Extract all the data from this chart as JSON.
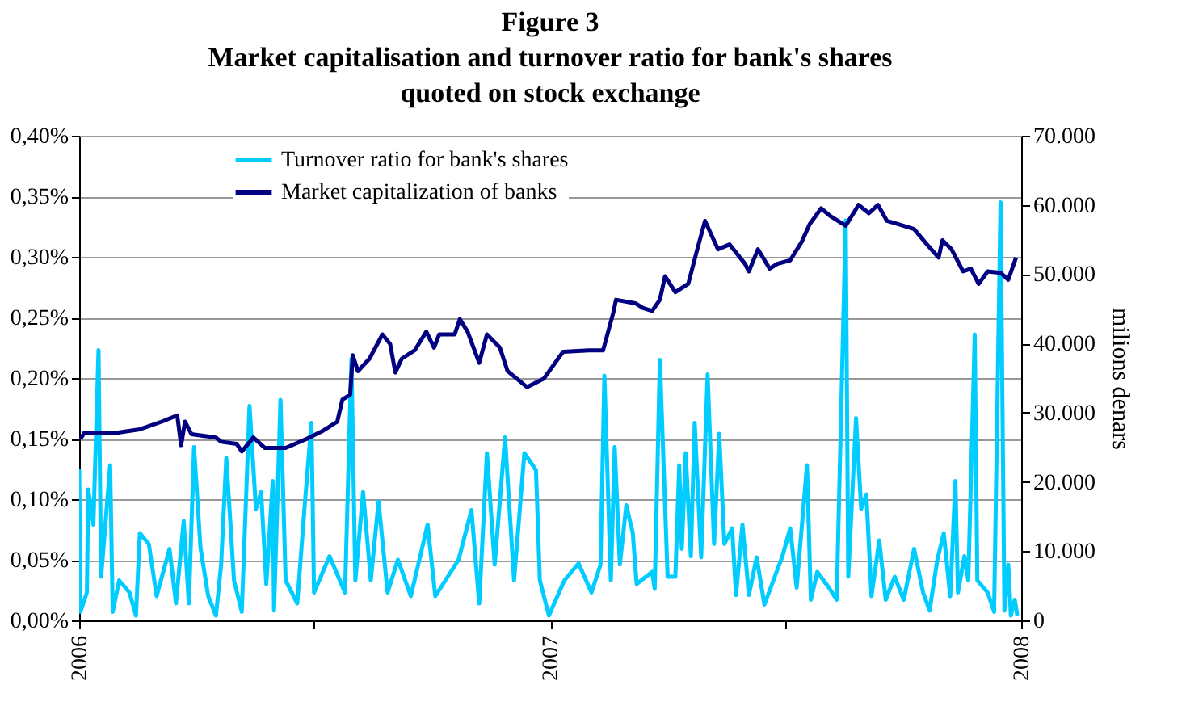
{
  "chart_data": {
    "type": "line",
    "title": "Figure 3",
    "subtitle": "Market capitalisation and turnover ratio for bank's shares\nquoted on stock exchange",
    "y2label": "milions denars",
    "xlim": [
      "2006-01-01",
      "2008-01-01"
    ],
    "xticks": [
      {
        "value": "2006-01-01",
        "label": "2006"
      },
      {
        "value": "2006-07-02",
        "label": null
      },
      {
        "value": "2007-01-01",
        "label": "2007"
      },
      {
        "value": "2007-07-02",
        "label": null
      },
      {
        "value": "2008-01-01",
        "label": "2008"
      }
    ],
    "ylim": [
      0,
      0.4
    ],
    "yticks": [
      {
        "value": 0,
        "label": "0,00%"
      },
      {
        "value": 0.05,
        "label": "0,05%"
      },
      {
        "value": 0.1,
        "label": "0,10%"
      },
      {
        "value": 0.15,
        "label": "0,15%"
      },
      {
        "value": 0.2,
        "label": "0,20%"
      },
      {
        "value": 0.25,
        "label": "0,25%"
      },
      {
        "value": 0.3,
        "label": "0,30%"
      },
      {
        "value": 0.35,
        "label": "0,35%"
      },
      {
        "value": 0.4,
        "label": "0,40%"
      }
    ],
    "y2lim": [
      0,
      70000
    ],
    "y2ticks": [
      {
        "value": 0,
        "label": "0"
      },
      {
        "value": 10000,
        "label": "10.000"
      },
      {
        "value": 20000,
        "label": "20.000"
      },
      {
        "value": 30000,
        "label": "30.000"
      },
      {
        "value": 40000,
        "label": "40.000"
      },
      {
        "value": 50000,
        "label": "50.000"
      },
      {
        "value": 60000,
        "label": "60.000"
      },
      {
        "value": 70000,
        "label": "70.000"
      }
    ],
    "grid": "y",
    "legend": "top",
    "marker": "none",
    "line_style": "solid",
    "series": [
      {
        "name": "Turnover ratio for bank's shares",
        "color": "#00ccff",
        "axis": "y",
        "x": [
          "2006-01-01",
          "2006-01-02",
          "2006-01-07",
          "2006-01-08",
          "2006-01-12",
          "2006-01-16",
          "2006-01-18",
          "2006-01-25",
          "2006-01-27",
          "2006-02-01",
          "2006-02-09",
          "2006-02-14",
          "2006-02-17",
          "2006-02-24",
          "2006-03-02",
          "2006-03-12",
          "2006-03-17",
          "2006-03-23",
          "2006-03-27",
          "2006-03-31",
          "2006-04-05",
          "2006-04-11",
          "2006-04-17",
          "2006-04-21",
          "2006-04-25",
          "2006-05-01",
          "2006-05-07",
          "2006-05-13",
          "2006-05-18",
          "2006-05-22",
          "2006-05-26",
          "2006-05-31",
          "2006-06-01",
          "2006-06-06",
          "2006-06-10",
          "2006-06-19",
          "2006-06-25",
          "2006-06-30",
          "2006-07-02",
          "2006-07-14",
          "2006-07-26",
          "2006-07-31",
          "2006-08-03",
          "2006-08-09",
          "2006-08-15",
          "2006-08-21",
          "2006-08-28",
          "2006-09-05",
          "2006-09-15",
          "2006-09-28",
          "2006-10-04",
          "2006-10-22",
          "2006-11-01",
          "2006-11-07",
          "2006-11-13",
          "2006-11-19",
          "2006-11-27",
          "2006-12-04",
          "2006-12-12",
          "2006-12-21",
          "2006-12-24",
          "2006-12-31",
          "2007-01-12",
          "2007-01-23",
          "2007-02-02",
          "2007-02-09",
          "2007-02-12",
          "2007-02-17",
          "2007-02-20",
          "2007-02-24",
          "2007-03-01",
          "2007-03-06",
          "2007-03-09",
          "2007-03-21",
          "2007-03-23",
          "2007-03-27",
          "2007-04-02",
          "2007-04-08",
          "2007-04-11",
          "2007-04-13",
          "2007-04-16",
          "2007-04-20",
          "2007-04-23",
          "2007-04-28",
          "2007-05-03",
          "2007-05-08",
          "2007-05-12",
          "2007-05-16",
          "2007-05-22",
          "2007-05-25",
          "2007-05-30",
          "2007-06-04",
          "2007-06-10",
          "2007-06-16",
          "2007-06-24",
          "2007-06-30",
          "2007-07-06",
          "2007-07-11",
          "2007-07-19",
          "2007-07-22",
          "2007-07-27",
          "2007-08-05",
          "2007-08-11",
          "2007-08-18",
          "2007-08-20",
          "2007-08-26",
          "2007-08-30",
          "2007-09-03",
          "2007-09-07",
          "2007-09-13",
          "2007-09-18",
          "2007-09-25",
          "2007-10-02",
          "2007-10-10",
          "2007-10-17",
          "2007-10-22",
          "2007-10-28",
          "2007-11-02",
          "2007-11-07",
          "2007-11-11",
          "2007-11-13",
          "2007-11-18",
          "2007-11-21",
          "2007-11-26",
          "2007-11-28",
          "2007-12-06",
          "2007-12-11",
          "2007-12-16",
          "2007-12-19",
          "2007-12-22",
          "2007-12-24",
          "2007-12-27",
          "2007-12-29"
        ],
        "values": [
          0.125,
          0.007,
          0.023,
          0.108,
          0.079,
          0.223,
          0.036,
          0.128,
          0.007,
          0.033,
          0.023,
          0.004,
          0.072,
          0.063,
          0.02,
          0.059,
          0.014,
          0.082,
          0.014,
          0.143,
          0.06,
          0.02,
          0.004,
          0.046,
          0.134,
          0.033,
          0.007,
          0.177,
          0.092,
          0.106,
          0.03,
          0.115,
          0.008,
          0.182,
          0.033,
          0.014,
          0.098,
          0.163,
          0.023,
          0.053,
          0.023,
          0.216,
          0.033,
          0.106,
          0.033,
          0.098,
          0.023,
          0.05,
          0.02,
          0.079,
          0.02,
          0.05,
          0.091,
          0.014,
          0.138,
          0.046,
          0.151,
          0.033,
          0.138,
          0.124,
          0.033,
          0.004,
          0.033,
          0.047,
          0.023,
          0.046,
          0.202,
          0.033,
          0.143,
          0.046,
          0.095,
          0.072,
          0.03,
          0.04,
          0.026,
          0.215,
          0.036,
          0.036,
          0.128,
          0.059,
          0.138,
          0.053,
          0.163,
          0.052,
          0.203,
          0.063,
          0.154,
          0.063,
          0.076,
          0.021,
          0.079,
          0.021,
          0.052,
          0.013,
          0.036,
          0.053,
          0.076,
          0.027,
          0.128,
          0.017,
          0.04,
          0.027,
          0.017,
          0.33,
          0.036,
          0.167,
          0.092,
          0.104,
          0.02,
          0.066,
          0.017,
          0.036,
          0.017,
          0.059,
          0.023,
          0.008,
          0.05,
          0.072,
          0.02,
          0.115,
          0.023,
          0.053,
          0.033,
          0.236,
          0.033,
          0.023,
          0.007,
          0.345,
          0.008,
          0.046,
          0.004,
          0.017,
          0.004
        ]
      },
      {
        "name": "Market capitalization of banks",
        "color": "#000080",
        "axis": "y2",
        "x": [
          "2006-01-02",
          "2006-01-05",
          "2006-01-27",
          "2006-02-17",
          "2006-03-06",
          "2006-03-18",
          "2006-03-21",
          "2006-03-24",
          "2006-03-29",
          "2006-04-17",
          "2006-04-21",
          "2006-05-03",
          "2006-05-07",
          "2006-05-16",
          "2006-05-25",
          "2006-06-10",
          "2006-06-26",
          "2006-07-09",
          "2006-07-20",
          "2006-07-24",
          "2006-07-30",
          "2006-08-01",
          "2006-08-05",
          "2006-08-14",
          "2006-08-24",
          "2006-08-30",
          "2006-09-03",
          "2006-09-08",
          "2006-09-18",
          "2006-09-27",
          "2006-10-03",
          "2006-10-07",
          "2006-10-19",
          "2006-10-23",
          "2006-10-29",
          "2006-11-07",
          "2006-11-13",
          "2006-11-23",
          "2006-11-29",
          "2006-12-14",
          "2006-12-27",
          "2007-01-11",
          "2007-01-31",
          "2007-02-11",
          "2007-02-19",
          "2007-02-21",
          "2007-03-08",
          "2007-03-14",
          "2007-03-21",
          "2007-03-27",
          "2007-03-31",
          "2007-04-08",
          "2007-04-18",
          "2007-04-25",
          "2007-05-01",
          "2007-05-11",
          "2007-05-20",
          "2007-06-01",
          "2007-06-04",
          "2007-06-11",
          "2007-06-20",
          "2007-06-26",
          "2007-07-06",
          "2007-07-15",
          "2007-07-21",
          "2007-07-30",
          "2007-08-06",
          "2007-08-18",
          "2007-08-28",
          "2007-09-05",
          "2007-09-12",
          "2007-09-19",
          "2007-09-28",
          "2007-10-10",
          "2007-10-20",
          "2007-10-29",
          "2007-11-01",
          "2007-11-08",
          "2007-11-17",
          "2007-11-23",
          "2007-11-29",
          "2007-12-06",
          "2007-12-16",
          "2007-12-22",
          "2007-12-28"
        ],
        "values": [
          26200,
          27100,
          27000,
          27600,
          28700,
          29600,
          25300,
          28700,
          26900,
          26400,
          25800,
          25500,
          24400,
          26400,
          24900,
          24900,
          26200,
          27400,
          28700,
          31900,
          32600,
          38300,
          36000,
          37800,
          41300,
          39900,
          35800,
          37800,
          39000,
          41700,
          39400,
          41300,
          41300,
          43500,
          41700,
          37200,
          41300,
          39400,
          36000,
          33700,
          34900,
          38800,
          39000,
          39000,
          44500,
          46300,
          45800,
          45100,
          44700,
          46300,
          49700,
          47400,
          48600,
          53600,
          57700,
          53600,
          54300,
          51500,
          50400,
          53600,
          50800,
          51500,
          52000,
          54700,
          57200,
          59500,
          58400,
          57000,
          60000,
          58800,
          60000,
          57700,
          57200,
          56500,
          54300,
          52400,
          54900,
          53600,
          50400,
          50800,
          48600,
          50400,
          50200,
          49200,
          52400
        ]
      }
    ]
  }
}
